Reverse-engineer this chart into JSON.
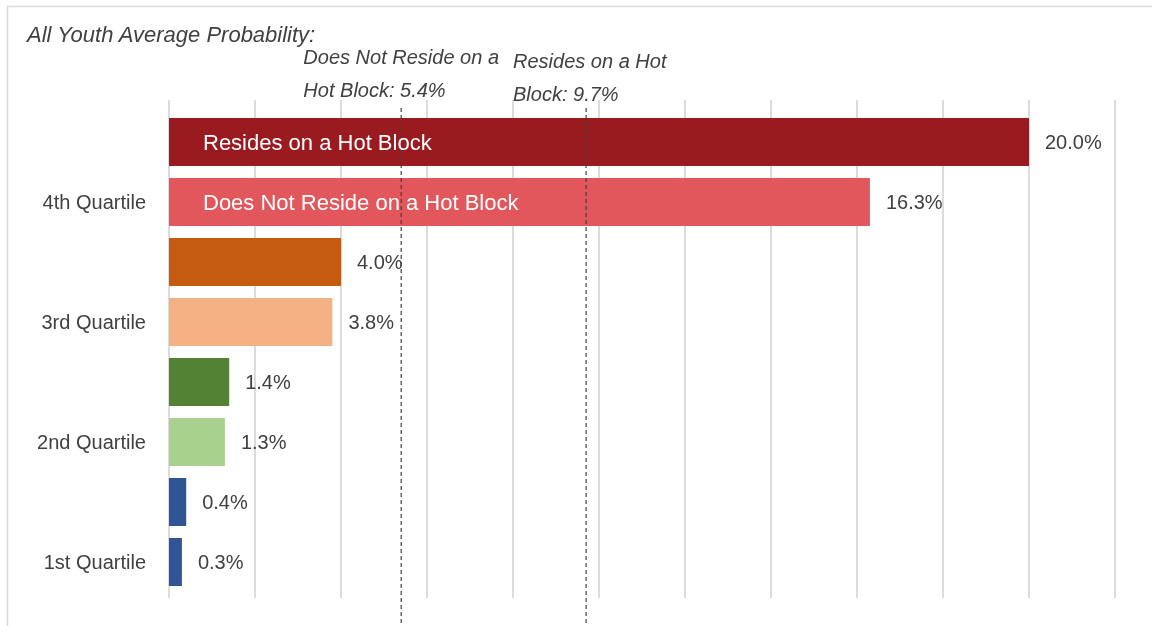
{
  "chart_data": {
    "type": "bar",
    "orientation": "horizontal",
    "categories": [
      "4th Quartile",
      "3rd Quartile",
      "2nd Quartile",
      "1st Quartile"
    ],
    "series": [
      {
        "name": "Resides on a Hot Block",
        "colors": [
          "#991b1f",
          "#c55a11",
          "#548235",
          "#2f5597"
        ],
        "values": [
          20.0,
          4.0,
          1.4,
          0.4
        ],
        "value_labels": [
          "20.0%",
          "4.0%",
          "1.4%",
          "0.4%"
        ]
      },
      {
        "name": "Does Not Reside on a Hot Block",
        "colors": [
          "#e2575c",
          "#f4b183",
          "#a9d18e",
          "#2f5597"
        ],
        "values": [
          16.3,
          3.8,
          1.3,
          0.3
        ],
        "value_labels": [
          "16.3%",
          "3.8%",
          "1.3%",
          "0.3%"
        ]
      }
    ],
    "xlim": [
      0,
      22
    ],
    "xticks": [
      0,
      2,
      4,
      6,
      8,
      10,
      12,
      14,
      16,
      18,
      20,
      22
    ],
    "grid": "x",
    "tick_labels": "y",
    "ref_lines": [
      {
        "axis": "x",
        "value": 5.4,
        "label": "Does Not Reside on a Hot Block: 5.4%",
        "line_style": "dashed",
        "color": "#404040"
      },
      {
        "axis": "x",
        "value": 9.7,
        "label": "Resides on a Hot Block: 9.7%",
        "line_style": "dashed",
        "color": "#404040"
      }
    ],
    "annotations": [
      "All Youth Average Probability:"
    ]
  }
}
